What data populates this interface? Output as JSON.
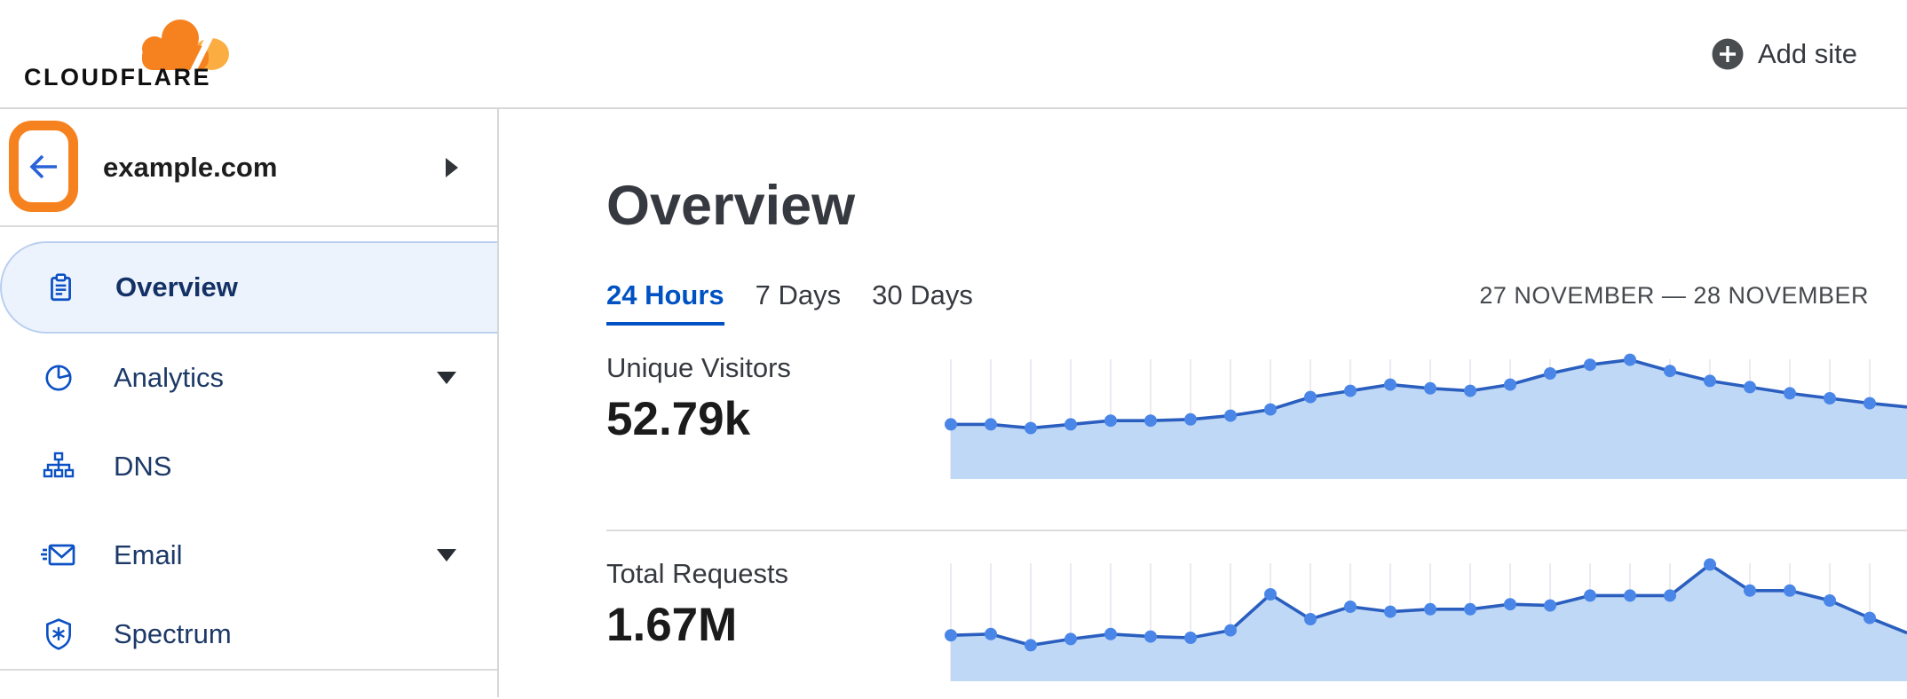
{
  "header": {
    "logo_text": "CLOUDFLARE",
    "add_site_label": "Add site"
  },
  "sidebar": {
    "site_name": "example.com",
    "items": [
      {
        "label": "Overview",
        "icon": "clipboard-icon",
        "selected": true,
        "expandable": false
      },
      {
        "label": "Analytics",
        "icon": "pie-chart-icon",
        "selected": false,
        "expandable": true
      },
      {
        "label": "DNS",
        "icon": "dns-tree-icon",
        "selected": false,
        "expandable": false
      },
      {
        "label": "Email",
        "icon": "email-icon",
        "selected": false,
        "expandable": true
      },
      {
        "label": "Spectrum",
        "icon": "shield-icon",
        "selected": false,
        "expandable": false
      }
    ],
    "annotation": "orange highlight box around back-arrow button"
  },
  "main": {
    "title": "Overview",
    "tabs": [
      {
        "label": "24 Hours",
        "active": true
      },
      {
        "label": "7 Days",
        "active": false
      },
      {
        "label": "30 Days",
        "active": false
      }
    ],
    "date_range": "27 NOVEMBER — 28 NOVEMBER",
    "metrics": [
      {
        "label": "Unique Visitors",
        "value": "52.79k"
      },
      {
        "label": "Total Requests",
        "value": "1.67M"
      }
    ]
  },
  "colors": {
    "accent_orange": "#F6821F",
    "logo_orange_light": "#FBAD41",
    "link_blue": "#0051C3",
    "back_arrow_blue": "#2A62D8",
    "nav_text": "#1C3968",
    "pill_bg": "#EDF3FC",
    "pill_border": "#BACFEF",
    "chart_line": "#2B5FBF",
    "chart_dot": "#4A86E8",
    "chart_fill": "#BFD8F6",
    "gridline": "#EBEBF1",
    "divider": "#D6D7D9",
    "text_dark": "#36393F"
  },
  "chart_data": [
    {
      "type": "area",
      "title": "Unique Visitors",
      "headline_value": "52.79k",
      "period": "24 Hours",
      "date_range": "27 NOVEMBER — 28 NOVEMBER",
      "x_description": "24 evenly spaced hourly points, x axis unlabeled",
      "y_description": "relative magnitude 0-1 (sparkline, no y-axis shown)",
      "grid": "vertical gridline at each point",
      "legend_shown": false,
      "values_rel": [
        0.44,
        0.44,
        0.41,
        0.44,
        0.47,
        0.47,
        0.48,
        0.51,
        0.56,
        0.66,
        0.71,
        0.76,
        0.73,
        0.71,
        0.76,
        0.85,
        0.92,
        0.96,
        0.87,
        0.79,
        0.74,
        0.69,
        0.65,
        0.61
      ],
      "edge_rel": 0.58
    },
    {
      "type": "area",
      "title": "Total Requests",
      "headline_value": "1.67M",
      "period": "24 Hours",
      "date_range": "27 NOVEMBER — 28 NOVEMBER",
      "x_description": "24 evenly spaced hourly points, x axis unlabeled",
      "y_description": "relative magnitude 0-1 (sparkline, no y-axis shown)",
      "grid": "vertical gridline at each point",
      "legend_shown": false,
      "values_rel": [
        0.37,
        0.38,
        0.29,
        0.34,
        0.38,
        0.36,
        0.35,
        0.41,
        0.7,
        0.5,
        0.6,
        0.56,
        0.58,
        0.58,
        0.62,
        0.61,
        0.69,
        0.69,
        0.69,
        0.94,
        0.73,
        0.73,
        0.65,
        0.51
      ],
      "edge_rel": 0.39
    }
  ]
}
